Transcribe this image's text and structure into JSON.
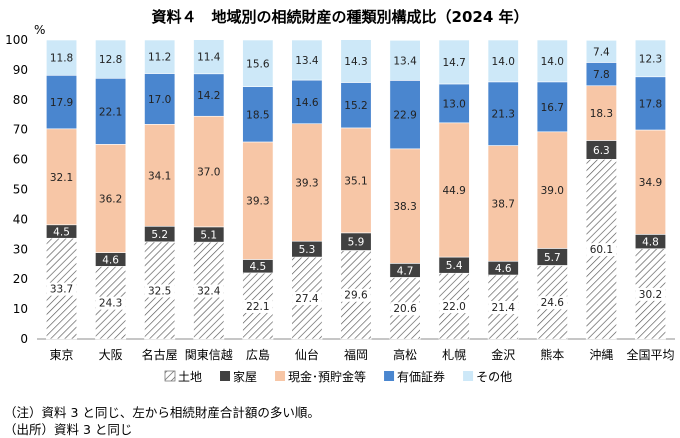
{
  "chart_data": {
    "type": "bar",
    "stacked": true,
    "title": "資料４　地域別の相続財産の種類別構成比（2024 年）",
    "ylabel": "%",
    "ylim": [
      0,
      100
    ],
    "yticks": [
      0,
      10,
      20,
      30,
      40,
      50,
      60,
      70,
      80,
      90,
      100
    ],
    "categories": [
      "東京",
      "大阪",
      "名古屋",
      "関東信越",
      "広島",
      "仙台",
      "福岡",
      "高松",
      "札幌",
      "金沢",
      "熊本",
      "沖縄",
      "全国平均"
    ],
    "series": [
      {
        "name": "土地",
        "color": "#ffffff",
        "pattern": "hatch",
        "values": [
          33.7,
          24.3,
          32.5,
          32.4,
          22.1,
          27.4,
          29.6,
          20.6,
          22.0,
          21.4,
          24.6,
          60.1,
          30.2
        ],
        "labels": [
          "33.7",
          "24.3",
          "32.5",
          "32.4",
          "22.1",
          "27.4",
          "29.6",
          "20.6",
          "22.0",
          "21.4",
          "24.6",
          "60.1",
          "30.2"
        ]
      },
      {
        "name": "家屋",
        "color": "#404040",
        "values": [
          4.5,
          4.6,
          5.2,
          5.1,
          4.5,
          5.3,
          5.9,
          4.7,
          5.4,
          4.6,
          5.7,
          6.3,
          4.8
        ],
        "labels": [
          "4.5",
          "4.6",
          "5.2",
          "5.1",
          "4.5",
          "5.3",
          "5.9",
          "4.7",
          "5.4",
          "4.6",
          "5.7",
          "6.3",
          "4.8"
        ]
      },
      {
        "name": "現金･預貯金等",
        "color": "#f7c6a6",
        "values": [
          32.1,
          36.2,
          34.1,
          37.0,
          39.3,
          39.3,
          35.1,
          38.3,
          44.9,
          38.7,
          39.0,
          18.3,
          34.9
        ],
        "labels": [
          "32.1",
          "36.2",
          "34.1",
          "37.0",
          "39.3",
          "39.3",
          "35.1",
          "38.3",
          "44.9",
          "38.7",
          "39.0",
          "18.3",
          "34.9"
        ]
      },
      {
        "name": "有価証券",
        "color": "#4a86cf",
        "values": [
          17.9,
          22.1,
          17.0,
          14.2,
          18.5,
          14.6,
          15.2,
          22.9,
          13.0,
          21.3,
          16.7,
          7.8,
          17.8
        ],
        "labels": [
          "17.9",
          "22.1",
          "17.0",
          "14.2",
          "18.5",
          "14.6",
          "15.2",
          "22.9",
          "13.0",
          "21.3",
          "16.7",
          "7.8",
          "17.8"
        ]
      },
      {
        "name": "その他",
        "color": "#cde8f8",
        "values": [
          11.8,
          12.8,
          11.2,
          11.4,
          15.6,
          13.4,
          14.3,
          13.4,
          14.7,
          14.0,
          14.0,
          7.4,
          12.3
        ],
        "labels": [
          "11.8",
          "12.8",
          "11.2",
          "11.4",
          "15.6",
          "13.4",
          "14.3",
          "13.4",
          "14.7",
          "14.0",
          "14.0",
          "7.4",
          "12.3"
        ]
      }
    ],
    "legend_position": "bottom",
    "grid": false
  },
  "notes": {
    "note1": "（注）資料 3 と同じ、左から相続財産合計額の多い順。",
    "source": "（出所）資料 3 と同じ"
  }
}
